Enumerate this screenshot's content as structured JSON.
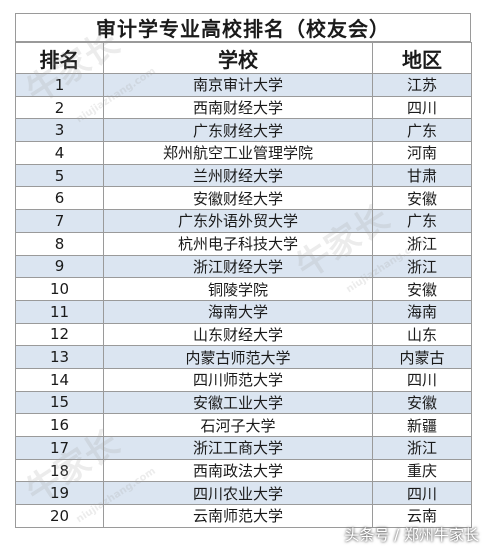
{
  "title": "审计学专业高校排名（校友会）",
  "headers": {
    "rank": "排名",
    "school": "学校",
    "region": "地区"
  },
  "rows": [
    {
      "rank": "1",
      "school": "南京审计大学",
      "region": "江苏"
    },
    {
      "rank": "2",
      "school": "西南财经大学",
      "region": "四川"
    },
    {
      "rank": "3",
      "school": "广东财经大学",
      "region": "广东"
    },
    {
      "rank": "4",
      "school": "郑州航空工业管理学院",
      "region": "河南"
    },
    {
      "rank": "5",
      "school": "兰州财经大学",
      "region": "甘肃"
    },
    {
      "rank": "6",
      "school": "安徽财经大学",
      "region": "安徽"
    },
    {
      "rank": "7",
      "school": "广东外语外贸大学",
      "region": "广东"
    },
    {
      "rank": "8",
      "school": "杭州电子科技大学",
      "region": "浙江"
    },
    {
      "rank": "9",
      "school": "浙江财经大学",
      "region": "浙江"
    },
    {
      "rank": "10",
      "school": "铜陵学院",
      "region": "安徽"
    },
    {
      "rank": "11",
      "school": "海南大学",
      "region": "海南"
    },
    {
      "rank": "12",
      "school": "山东财经大学",
      "region": "山东"
    },
    {
      "rank": "13",
      "school": "内蒙古师范大学",
      "region": "内蒙古"
    },
    {
      "rank": "14",
      "school": "四川师范大学",
      "region": "四川"
    },
    {
      "rank": "15",
      "school": "安徽工业大学",
      "region": "安徽"
    },
    {
      "rank": "16",
      "school": "石河子大学",
      "region": "新疆"
    },
    {
      "rank": "17",
      "school": "浙江工商大学",
      "region": "浙江"
    },
    {
      "rank": "18",
      "school": "西南政法大学",
      "region": "重庆"
    },
    {
      "rank": "19",
      "school": "四川农业大学",
      "region": "四川"
    },
    {
      "rank": "20",
      "school": "云南师范大学",
      "region": "云南"
    }
  ],
  "watermark": {
    "text": "牛家长",
    "url": "niujiazhang.com"
  },
  "footer": "头条号 / 郑州牛家长",
  "colors": {
    "shade": "#dbe5f1",
    "border": "#9a9a9a"
  }
}
